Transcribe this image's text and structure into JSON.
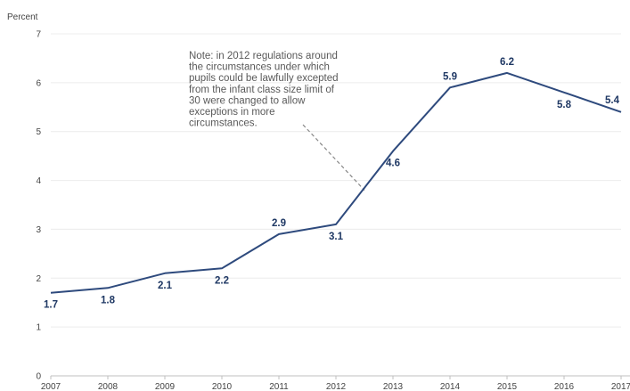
{
  "chart_data": {
    "type": "line",
    "title": "",
    "xlabel": "",
    "ylabel": "Percent",
    "x": [
      "2007",
      "2008",
      "2009",
      "2010",
      "2011",
      "2012",
      "2013",
      "2014",
      "2015",
      "2016",
      "2017"
    ],
    "series": [
      {
        "values": [
          1.7,
          1.8,
          2.1,
          2.2,
          2.9,
          3.1,
          4.6,
          5.9,
          6.2,
          5.8,
          5.4
        ]
      }
    ],
    "data_labels": [
      "1.7",
      "1.8",
      "2.1",
      "2.2",
      "2.9",
      "3.1",
      "4.6",
      "5.9",
      "6.2",
      "5.8",
      "5.4"
    ],
    "ylim": [
      0,
      7
    ],
    "yticks": [
      "0",
      "1",
      "2",
      "3",
      "4",
      "5",
      "6",
      "7"
    ],
    "grid": true,
    "line_color": "#2e4a7d",
    "label_color": "#1f3864",
    "annotation": {
      "lines": [
        "Note: in 2012 regulations around",
        "the circumstances under which",
        "pupils could be lawfully excepted",
        "from the infant class size limit of",
        "30 were changed to allow",
        "exceptions in more",
        "circumstances."
      ],
      "points_to_x": 2012.5,
      "points_to_y": 3.8
    }
  }
}
